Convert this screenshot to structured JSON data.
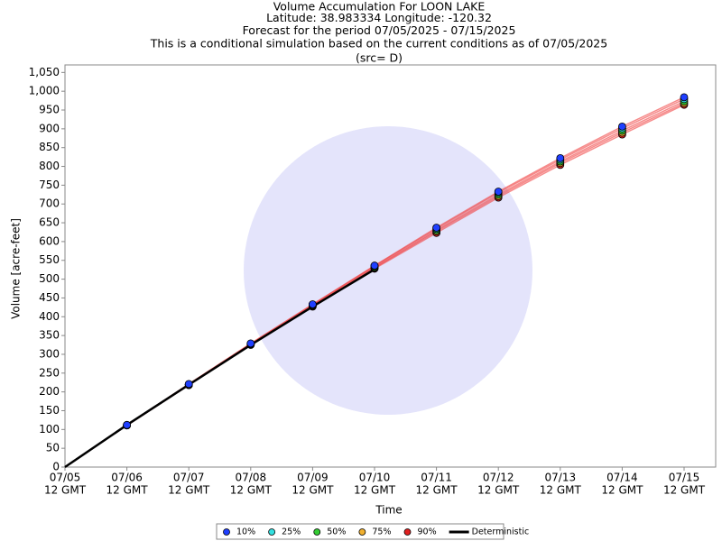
{
  "chart_data": {
    "type": "line",
    "title": "Volume Accumulation For LOON LAKE",
    "subtitle": [
      "Latitude: 38.983334 Longitude: -120.32",
      "Forecast for the period 07/05/2025 - 07/15/2025",
      "This is a conditional simulation based on the current conditions as of 07/05/2025",
      "(src= D)"
    ],
    "x_label": "Time",
    "y_label": "Volume [acre-feet]",
    "categories": [
      [
        "07/05",
        "12 GMT"
      ],
      [
        "07/06",
        "12 GMT"
      ],
      [
        "07/07",
        "12 GMT"
      ],
      [
        "07/08",
        "12 GMT"
      ],
      [
        "07/09",
        "12 GMT"
      ],
      [
        "07/10",
        "12 GMT"
      ],
      [
        "07/11",
        "12 GMT"
      ],
      [
        "07/12",
        "12 GMT"
      ],
      [
        "07/13",
        "12 GMT"
      ],
      [
        "07/14",
        "12 GMT"
      ],
      [
        "07/15",
        "12 GMT"
      ]
    ],
    "ylim": [
      0,
      1070
    ],
    "yticks": [
      0,
      50,
      100,
      150,
      200,
      250,
      300,
      350,
      400,
      450,
      500,
      550,
      600,
      650,
      700,
      750,
      800,
      850,
      900,
      950,
      {
        "value": 1000,
        "label": "1,000"
      },
      {
        "value": 1050,
        "label": "1,050"
      }
    ],
    "series": [
      {
        "name": "10%",
        "color": "#1f3fff",
        "values": [
          null,
          112,
          221,
          329,
          433,
          536,
          637,
          733,
          822,
          906,
          984
        ]
      },
      {
        "name": "25%",
        "color": "#33e0e0",
        "values": [
          null,
          112,
          220,
          328,
          432,
          535,
          634,
          730,
          818,
          901,
          979
        ]
      },
      {
        "name": "50%",
        "color": "#33cc33",
        "values": [
          null,
          111,
          219,
          327,
          430,
          532,
          630,
          725,
          813,
          895,
          973
        ]
      },
      {
        "name": "75%",
        "color": "#f0b030",
        "values": [
          null,
          111,
          219,
          326,
          429,
          530,
          627,
          721,
          809,
          890,
          968
        ]
      },
      {
        "name": "90%",
        "color": "#e02020",
        "values": [
          null,
          111,
          218,
          325,
          427,
          528,
          623,
          717,
          804,
          885,
          964
        ]
      },
      {
        "name": "Deterministic",
        "color": "#000000",
        "values": [
          0,
          112,
          219,
          325,
          427,
          526,
          null,
          null,
          null,
          null,
          null
        ]
      }
    ]
  }
}
